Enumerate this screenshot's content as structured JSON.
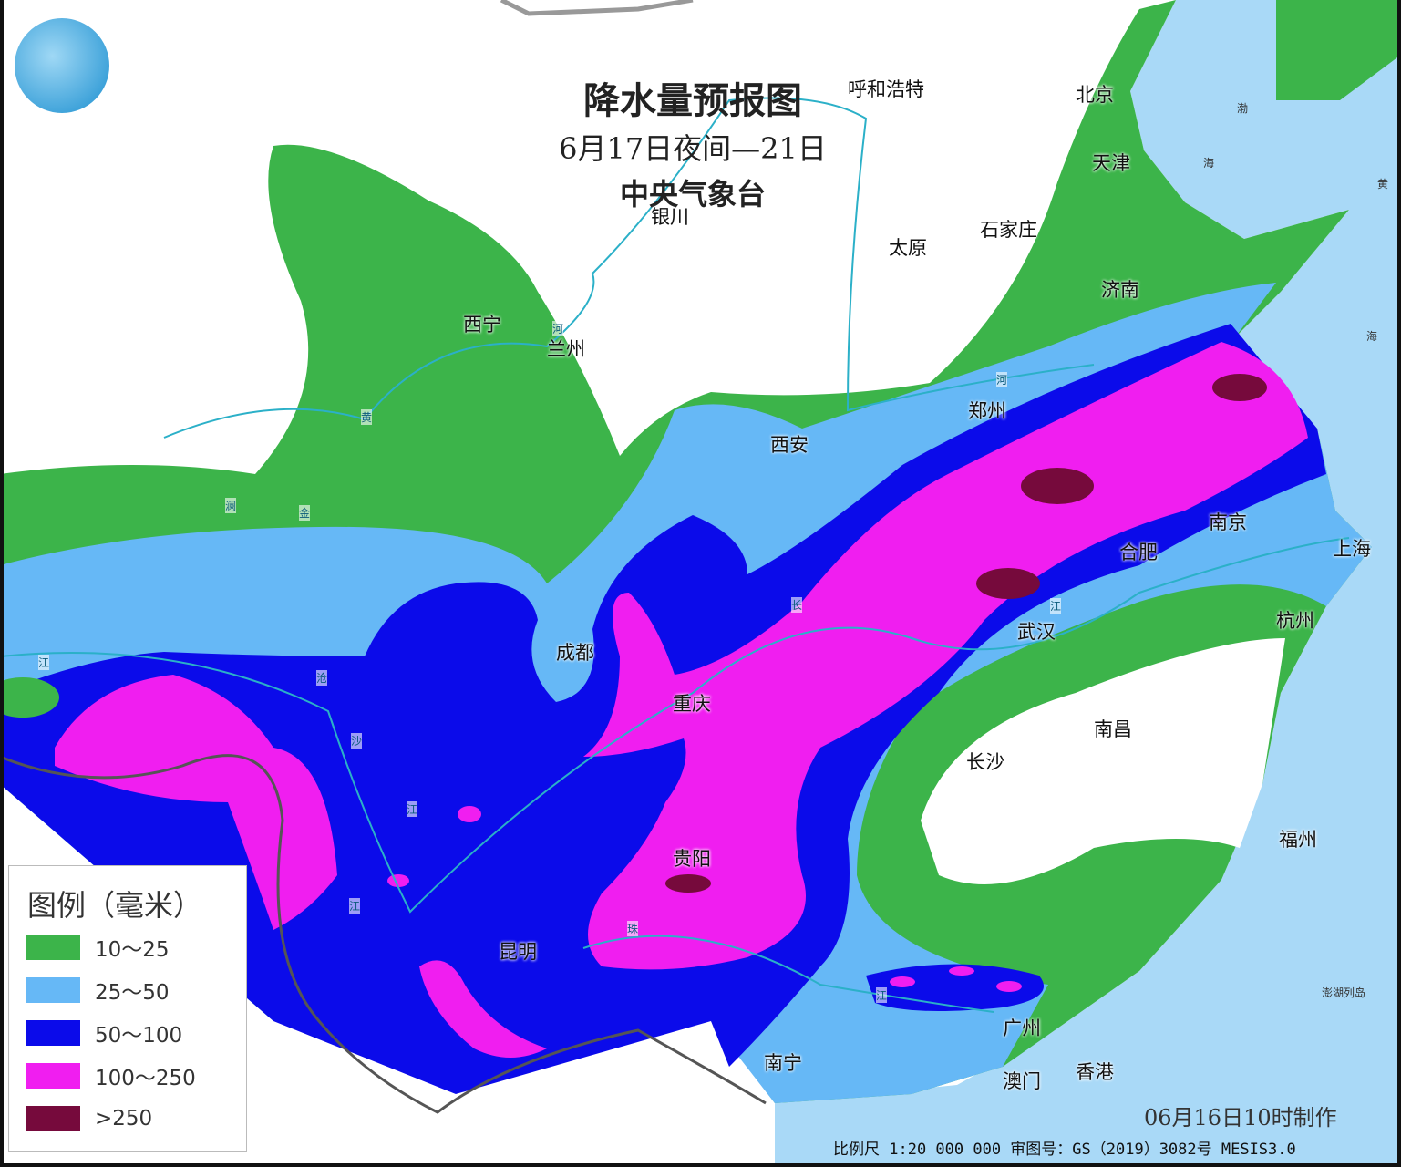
{
  "title": {
    "main": "降水量预报图",
    "period": "6月17日夜间—21日",
    "agency": "中央气象台"
  },
  "colors": {
    "c10_25": "#3cb44a",
    "c25_50": "#66b8f6",
    "c50_100": "#0b0bea",
    "c100_250": "#f01ef0",
    "c250": "#760a3c",
    "sea": "#a9d9f7",
    "land": "#ffffff"
  },
  "legend": {
    "title": "图例（毫米）",
    "items": [
      {
        "label": "10～25",
        "color": "#3cb44a"
      },
      {
        "label": "25～50",
        "color": "#66b8f6"
      },
      {
        "label": "50～100",
        "color": "#0b0bea"
      },
      {
        "label": "100～250",
        "color": "#f01ef0"
      },
      {
        "label": ">250",
        "color": "#760a3c"
      }
    ]
  },
  "cities": [
    "呼和浩特",
    "北京",
    "天津",
    "银川",
    "石家庄",
    "太原",
    "济南",
    "西宁",
    "兰州",
    "郑州",
    "西安",
    "南京",
    "合肥",
    "上海",
    "成都",
    "武汉",
    "杭州",
    "重庆",
    "南昌",
    "长沙",
    "贵阳",
    "福州",
    "昆明",
    "广州",
    "南宁",
    "澳门",
    "香港"
  ],
  "rivers": [
    "河",
    "黄",
    "澜",
    "金",
    "沧",
    "沙",
    "江",
    "江",
    "江",
    "长",
    "江",
    "珠",
    "江",
    "河"
  ],
  "seas": [
    "渤",
    "海",
    "黄",
    "海",
    "澎湖列岛"
  ],
  "made": "06月16日10时制作",
  "footer": "比例尺 1:20 000 000  审图号：GS（2019）3082号 MESIS3.0",
  "logo_icon": "cma-logo-icon"
}
